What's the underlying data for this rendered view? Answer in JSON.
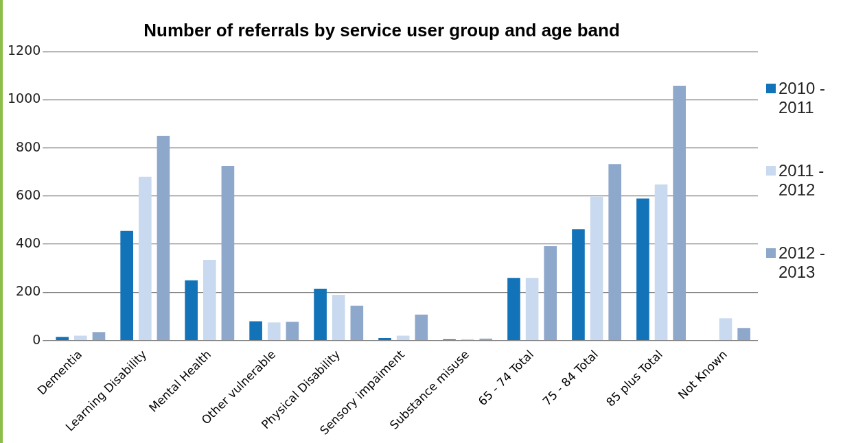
{
  "chart_data": {
    "type": "bar",
    "title": "Number of referrals by service user group and age band",
    "categories": [
      "Dementia",
      "Learning Disability",
      "Mental Health",
      "Other vulnerable",
      "Physical Disability",
      "Sensory impaiment",
      "Substance misuse",
      "65 - 74 Total",
      "75 - 84 Total",
      "85 plus Total",
      "Not Known"
    ],
    "series": [
      {
        "name": "2010 - 2011",
        "color": "#1273b8",
        "values": [
          15,
          455,
          250,
          80,
          215,
          10,
          5,
          260,
          462,
          590,
          null
        ]
      },
      {
        "name": "2011 - 2012",
        "color": "#c9d9ef",
        "values": [
          20,
          680,
          335,
          75,
          190,
          20,
          7,
          260,
          598,
          648,
          92
        ]
      },
      {
        "name": "2012 - 2013",
        "color": "#8ea8cb",
        "values": [
          35,
          850,
          725,
          78,
          145,
          108,
          8,
          392,
          733,
          1058,
          52
        ]
      }
    ],
    "ylim": [
      0,
      1200
    ],
    "yticks": [
      0,
      200,
      400,
      600,
      800,
      1000,
      1200
    ],
    "grid": "y",
    "legend": "right"
  }
}
